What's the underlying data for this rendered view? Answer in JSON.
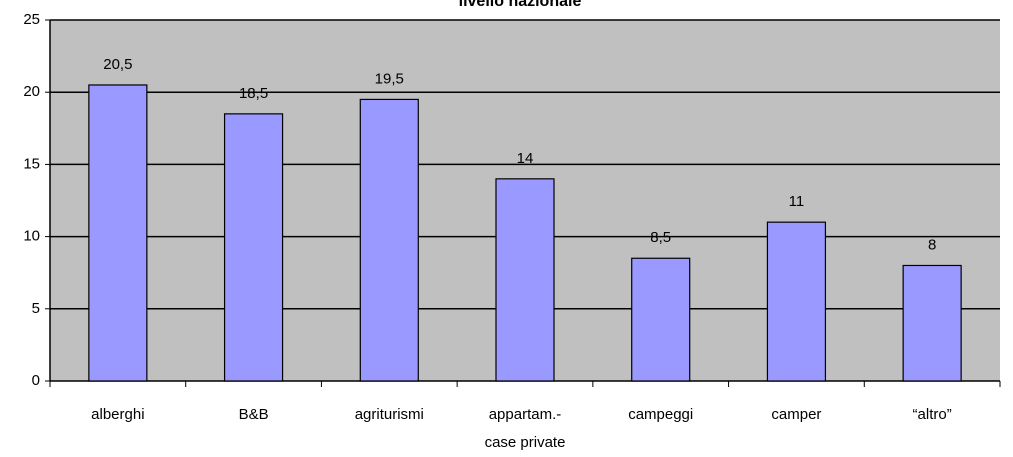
{
  "chart_data": {
    "type": "bar",
    "title": "livello nazionale",
    "categories": [
      "alberghi",
      "B&B",
      "agriturismi",
      "appartam.-\ncase private",
      "campeggi",
      "camper",
      "“altro”"
    ],
    "values": [
      20.5,
      18.5,
      19.5,
      14,
      8.5,
      11,
      8
    ],
    "value_labels": [
      "20,5",
      "18,5",
      "19,5",
      "14",
      "8,5",
      "11",
      "8"
    ],
    "color": "#9999ff",
    "ylim": [
      0,
      25
    ],
    "yticks": [
      0,
      5,
      10,
      15,
      20,
      25
    ],
    "grid": true
  }
}
